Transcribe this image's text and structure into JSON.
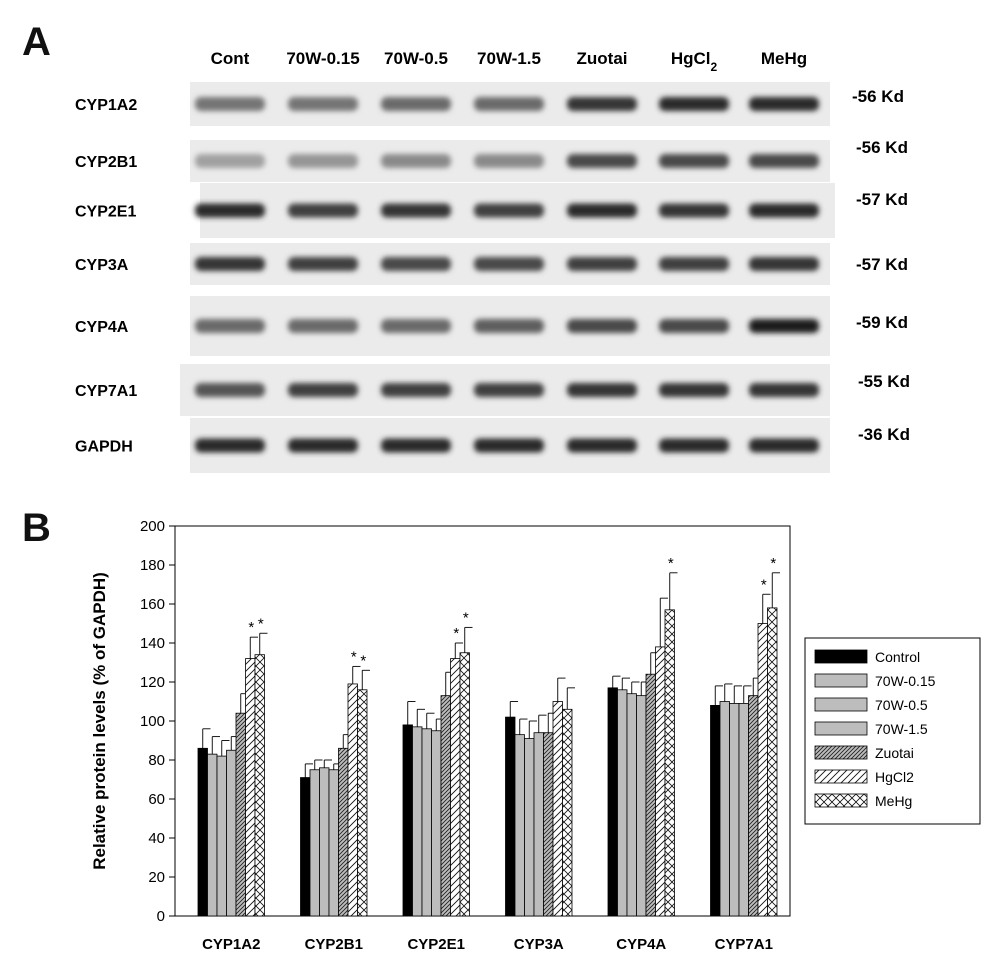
{
  "panel_a": {
    "letter": "A",
    "lanes": [
      "Cont",
      "70W-0.15",
      "70W-0.5",
      "70W-1.5",
      "Zuotai",
      "HgCl",
      "MeHg"
    ],
    "hgcl_subscript": "2",
    "blots": [
      {
        "protein": "CYP1A2",
        "size": "-56 Kd",
        "intensity": [
          0.55,
          0.55,
          0.6,
          0.6,
          0.85,
          0.9,
          0.9
        ]
      },
      {
        "protein": "CYP2B1",
        "size": "-56 Kd",
        "intensity": [
          0.35,
          0.4,
          0.45,
          0.45,
          0.75,
          0.75,
          0.75
        ]
      },
      {
        "protein": "CYP2E1",
        "size": "-57 Kd",
        "intensity": [
          0.9,
          0.8,
          0.85,
          0.8,
          0.9,
          0.85,
          0.9
        ]
      },
      {
        "protein": "CYP3A",
        "size": "-57 Kd",
        "intensity": [
          0.85,
          0.8,
          0.75,
          0.75,
          0.8,
          0.8,
          0.85
        ]
      },
      {
        "protein": "CYP4A",
        "size": "-59 Kd",
        "intensity": [
          0.6,
          0.6,
          0.6,
          0.65,
          0.75,
          0.75,
          0.95
        ]
      },
      {
        "protein": "CYP7A1",
        "size": "-55 Kd",
        "intensity": [
          0.7,
          0.8,
          0.8,
          0.8,
          0.85,
          0.85,
          0.85
        ]
      },
      {
        "protein": "GAPDH",
        "size": "-36 Kd",
        "intensity": [
          0.9,
          0.9,
          0.9,
          0.9,
          0.9,
          0.9,
          0.9
        ]
      }
    ]
  },
  "panel_b": {
    "letter": "B"
  },
  "chart_data": {
    "type": "bar",
    "categories": [
      "CYP1A2",
      "CYP2B1",
      "CYP2E1",
      "CYP3A",
      "CYP4A",
      "CYP7A1"
    ],
    "ylabel": "Relative protein levels (% of GAPDH)",
    "xlabel": "",
    "ylim": [
      0,
      200
    ],
    "yticks": [
      0,
      20,
      40,
      60,
      80,
      100,
      120,
      140,
      160,
      180,
      200
    ],
    "grid": false,
    "legend_position": "right",
    "significance_marker": "*",
    "series": [
      {
        "name": "Control",
        "fill": "black",
        "values": [
          86,
          71,
          98,
          102,
          117,
          108
        ],
        "errors": [
          10,
          7,
          12,
          8,
          6,
          10
        ],
        "significant": [
          false,
          false,
          false,
          false,
          false,
          false
        ]
      },
      {
        "name": "70W-0.15",
        "fill": "gray",
        "values": [
          83,
          75,
          97,
          93,
          116,
          110
        ],
        "errors": [
          9,
          5,
          9,
          8,
          6,
          9
        ],
        "significant": [
          false,
          false,
          false,
          false,
          false,
          false
        ]
      },
      {
        "name": "70W-0.5",
        "fill": "gray",
        "values": [
          82,
          76,
          96,
          91,
          114,
          109
        ],
        "errors": [
          8,
          4,
          8,
          9,
          6,
          9
        ],
        "significant": [
          false,
          false,
          false,
          false,
          false,
          false
        ]
      },
      {
        "name": "70W-1.5",
        "fill": "gray",
        "values": [
          85,
          75,
          95,
          94,
          113,
          109
        ],
        "errors": [
          7,
          3,
          6,
          9,
          7,
          9
        ],
        "significant": [
          false,
          false,
          false,
          false,
          false,
          false
        ]
      },
      {
        "name": "Zuotai",
        "fill": "dense-hatch",
        "values": [
          104,
          86,
          113,
          94,
          124,
          113
        ],
        "errors": [
          10,
          7,
          12,
          10,
          11,
          9
        ],
        "significant": [
          false,
          false,
          false,
          false,
          false,
          false
        ]
      },
      {
        "name": "HgCl2",
        "fill": "diagonal",
        "values": [
          132,
          119,
          132,
          110,
          138,
          150
        ],
        "errors": [
          11,
          9,
          8,
          12,
          25,
          15
        ],
        "significant": [
          true,
          true,
          true,
          false,
          false,
          true
        ]
      },
      {
        "name": "MeHg",
        "fill": "crosshatch",
        "values": [
          134,
          116,
          135,
          106,
          157,
          158
        ],
        "errors": [
          11,
          10,
          13,
          11,
          19,
          18
        ],
        "significant": [
          true,
          true,
          true,
          false,
          true,
          true
        ]
      }
    ]
  }
}
